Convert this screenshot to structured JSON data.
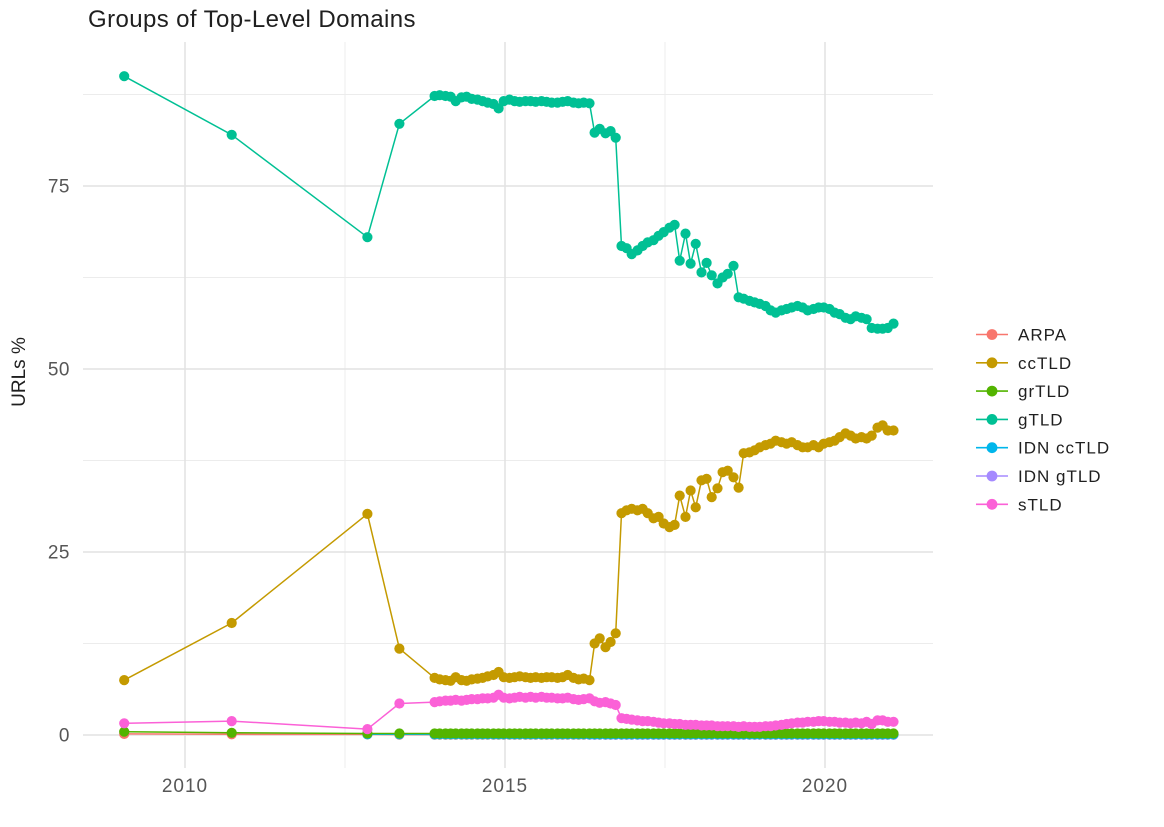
{
  "title": "Groups of Top-Level Domains",
  "y_axis": {
    "label": "URLs %",
    "tick_labels": [
      "0",
      "25",
      "50",
      "75"
    ]
  },
  "x_axis": {
    "tick_labels": [
      "2010",
      "2015",
      "2020"
    ]
  },
  "legend": {
    "items": [
      {
        "label": "ARPA",
        "color": "#F8766D"
      },
      {
        "label": "ccTLD",
        "color": "#C49A00"
      },
      {
        "label": "grTLD",
        "color": "#53B400"
      },
      {
        "label": "gTLD",
        "color": "#00C094"
      },
      {
        "label": "IDN ccTLD",
        "color": "#00B6EB"
      },
      {
        "label": "IDN gTLD",
        "color": "#A58AFF"
      },
      {
        "label": "sTLD",
        "color": "#FB61D7"
      }
    ]
  },
  "chart_data": {
    "type": "line",
    "title": "Groups of Top-Level Domains",
    "xlabel": "",
    "ylabel": "URLs %",
    "xlim": [
      2008.43,
      2021.73
    ],
    "ylim": [
      -4.5,
      94.6
    ],
    "grid": "major+minor",
    "legend_position": "right",
    "marker": "point",
    "axis": {
      "x_major": [
        2010,
        2015,
        2020
      ],
      "x_minor": [
        2012.5,
        2017.5
      ],
      "y_major": [
        0,
        25,
        50,
        75
      ],
      "y_minor": [
        12.5,
        37.5,
        62.5,
        87.5
      ]
    },
    "draw_order": [
      "ARPA",
      "IDN gTLD",
      "IDN ccTLD",
      "grTLD",
      "ccTLD",
      "gTLD",
      "sTLD"
    ],
    "x_common": [
      2009.05,
      2010.73,
      2012.85,
      2013.35,
      2013.9,
      2013.98,
      2014.07,
      2014.15,
      2014.23,
      2014.32,
      2014.4,
      2014.48,
      2014.57,
      2014.65,
      2014.73,
      2014.82,
      2014.9,
      2014.98,
      2015.07,
      2015.15,
      2015.23,
      2015.32,
      2015.4,
      2015.48,
      2015.57,
      2015.65,
      2015.73,
      2015.82,
      2015.9,
      2015.98,
      2016.07,
      2016.15,
      2016.23,
      2016.32,
      2016.4,
      2016.48,
      2016.57,
      2016.65,
      2016.73,
      2016.82,
      2016.9,
      2016.98,
      2017.07,
      2017.15,
      2017.23,
      2017.32,
      2017.4,
      2017.48,
      2017.57,
      2017.65,
      2017.73,
      2017.82,
      2017.9,
      2017.98,
      2018.07,
      2018.15,
      2018.23,
      2018.32,
      2018.4,
      2018.48,
      2018.57,
      2018.65,
      2018.73,
      2018.82,
      2018.9,
      2018.98,
      2019.07,
      2019.15,
      2019.23,
      2019.32,
      2019.4,
      2019.48,
      2019.57,
      2019.65,
      2019.73,
      2019.82,
      2019.9,
      2019.98,
      2020.07,
      2020.15,
      2020.23,
      2020.32,
      2020.4,
      2020.48,
      2020.57,
      2020.65,
      2020.73,
      2020.82,
      2020.9,
      2020.98,
      2021.07
    ],
    "series": [
      {
        "name": "ARPA",
        "color": "#F8766D",
        "x_start_index": 0,
        "y": [
          0.15,
          0.1,
          0.08,
          0.06,
          0.05,
          0.05,
          0.05,
          0.05,
          0.05,
          0.05,
          0.05,
          0.05,
          0.05,
          0.05,
          0.05,
          0.05,
          0.05,
          0.05,
          0.05,
          0.05,
          0.05,
          0.05,
          0.05,
          0.05,
          0.05,
          0.05,
          0.05,
          0.05,
          0.05,
          0.05,
          0.05,
          0.05,
          0.05,
          0.05,
          0.05,
          0.05,
          0.05,
          0.05,
          0.05,
          0.05,
          0.05,
          0.05,
          0.05,
          0.05,
          0.05,
          0.05,
          0.05,
          0.05,
          0.05,
          0.05,
          0.05,
          0.05,
          0.05,
          0.05,
          0.05,
          0.05,
          0.05,
          0.05,
          0.05,
          0.05,
          0.05,
          0.05,
          0.05,
          0.05,
          0.05,
          0.05,
          0.05,
          0.05,
          0.05,
          0.05,
          0.05,
          0.05,
          0.05,
          0.05,
          0.05,
          0.05,
          0.05,
          0.05,
          0.05,
          0.05,
          0.05,
          0.05,
          0.05,
          0.05,
          0.05,
          0.05,
          0.05,
          0.05,
          0.05,
          0.05,
          0.05
        ]
      },
      {
        "name": "ccTLD",
        "color": "#C49A00",
        "x_start_index": 0,
        "y": [
          7.5,
          15.3,
          30.2,
          11.8,
          7.8,
          7.6,
          7.5,
          7.4,
          7.9,
          7.5,
          7.4,
          7.6,
          7.7,
          7.8,
          8,
          8.2,
          8.6,
          7.9,
          7.8,
          7.9,
          8,
          7.9,
          7.8,
          7.9,
          7.8,
          7.9,
          7.9,
          7.8,
          7.9,
          8.2,
          7.8,
          7.6,
          7.7,
          7.5,
          12.5,
          13.2,
          12,
          12.7,
          13.9,
          30.3,
          30.7,
          30.9,
          30.7,
          30.9,
          30.3,
          29.6,
          29.8,
          28.9,
          28.4,
          28.7,
          32.7,
          29.8,
          33.4,
          31.1,
          34.8,
          35,
          32.5,
          33.7,
          35.9,
          36.1,
          35.2,
          33.8,
          38.5,
          38.6,
          38.9,
          39.3,
          39.6,
          39.8,
          40.2,
          40,
          39.8,
          40,
          39.6,
          39.3,
          39.3,
          39.6,
          39.3,
          39.8,
          40,
          40.2,
          40.7,
          41.2,
          40.9,
          40.5,
          40.7,
          40.5,
          40.9,
          42,
          42.3,
          41.6,
          41.6
        ]
      },
      {
        "name": "grTLD",
        "color": "#53B400",
        "x_start_index": 0,
        "y": [
          0.45,
          0.3,
          0.2,
          0.2,
          0.2,
          0.2,
          0.2,
          0.2,
          0.2,
          0.2,
          0.2,
          0.2,
          0.2,
          0.2,
          0.2,
          0.2,
          0.2,
          0.2,
          0.2,
          0.2,
          0.2,
          0.2,
          0.2,
          0.2,
          0.2,
          0.2,
          0.2,
          0.2,
          0.2,
          0.2,
          0.2,
          0.2,
          0.2,
          0.2,
          0.2,
          0.2,
          0.2,
          0.2,
          0.2,
          0.2,
          0.2,
          0.2,
          0.2,
          0.2,
          0.2,
          0.2,
          0.2,
          0.2,
          0.2,
          0.2,
          0.2,
          0.2,
          0.2,
          0.2,
          0.2,
          0.2,
          0.2,
          0.2,
          0.2,
          0.2,
          0.2,
          0.2,
          0.2,
          0.2,
          0.2,
          0.2,
          0.2,
          0.2,
          0.2,
          0.2,
          0.2,
          0.2,
          0.2,
          0.2,
          0.2,
          0.2,
          0.2,
          0.2,
          0.2,
          0.2,
          0.2,
          0.2,
          0.2,
          0.2,
          0.2,
          0.2,
          0.2,
          0.2,
          0.2,
          0.2,
          0.2
        ]
      },
      {
        "name": "gTLD",
        "color": "#00C094",
        "x_start_index": 0,
        "y": [
          90,
          82,
          68,
          83.5,
          87.3,
          87.4,
          87.3,
          87.2,
          86.6,
          87.1,
          87.2,
          86.9,
          86.8,
          86.6,
          86.4,
          86.2,
          85.6,
          86.6,
          86.8,
          86.6,
          86.5,
          86.6,
          86.6,
          86.5,
          86.6,
          86.5,
          86.4,
          86.4,
          86.5,
          86.6,
          86.4,
          86.3,
          86.4,
          86.3,
          82.3,
          82.8,
          82.2,
          82.5,
          81.6,
          66.8,
          66.5,
          65.7,
          66.2,
          66.8,
          67.3,
          67.6,
          68.2,
          68.7,
          69.3,
          69.7,
          64.8,
          68.5,
          64.4,
          67.1,
          63.2,
          64.5,
          62.8,
          61.7,
          62.5,
          63,
          64.1,
          59.8,
          59.6,
          59.3,
          59.1,
          58.9,
          58.6,
          58,
          57.7,
          58,
          58.2,
          58.4,
          58.6,
          58.4,
          58,
          58.2,
          58.4,
          58.4,
          58.2,
          57.7,
          57.5,
          57,
          56.8,
          57.2,
          57,
          56.8,
          55.6,
          55.5,
          55.5,
          55.6,
          56.2
        ]
      },
      {
        "name": "IDN ccTLD",
        "color": "#00B6EB",
        "x_start_index": 2,
        "y": [
          0.1,
          0.1,
          0.08,
          0.08,
          0.08,
          0.08,
          0.08,
          0.08,
          0.08,
          0.08,
          0.08,
          0.08,
          0.08,
          0.08,
          0.08,
          0.08,
          0.08,
          0.08,
          0.08,
          0.08,
          0.08,
          0.08,
          0.08,
          0.08,
          0.08,
          0.08,
          0.08,
          0.08,
          0.08,
          0.08,
          0.08,
          0.08,
          0.08,
          0.08,
          0.08,
          0.08,
          0.08,
          0.08,
          0.08,
          0.08,
          0.08,
          0.08,
          0.08,
          0.08,
          0.08,
          0.08,
          0.08,
          0.08,
          0.08,
          0.08,
          0.08,
          0.08,
          0.08,
          0.08,
          0.08,
          0.08,
          0.08,
          0.08,
          0.08,
          0.08,
          0.08,
          0.08,
          0.08,
          0.08,
          0.08,
          0.08,
          0.08,
          0.08,
          0.08,
          0.08,
          0.08,
          0.08,
          0.08,
          0.08,
          0.08,
          0.08,
          0.08,
          0.08,
          0.08,
          0.08,
          0.08,
          0.08,
          0.08,
          0.08,
          0.08,
          0.08,
          0.08,
          0.08,
          0.08
        ]
      },
      {
        "name": "IDN gTLD",
        "color": "#A58AFF",
        "x_start_index": 33,
        "y": [
          0.05,
          0.05,
          0.05,
          0.05,
          0.05,
          0.05,
          0.05,
          0.05,
          0.05,
          0.05,
          0.05,
          0.05,
          0.05,
          0.05,
          0.05,
          0.05,
          0.05,
          0.05,
          0.05,
          0.05,
          0.05,
          0.05,
          0.05,
          0.05,
          0.05,
          0.05,
          0.05,
          0.05,
          0.05,
          0.05,
          0.05,
          0.05,
          0.05,
          0.05,
          0.05,
          0.05,
          0.05,
          0.05,
          0.05,
          0.05,
          0.05,
          0.05,
          0.05,
          0.05,
          0.05,
          0.05,
          0.05,
          0.05,
          0.05,
          0.05,
          0.05,
          0.05,
          0.05,
          0.05,
          0.05,
          0.05,
          0.05,
          0.05
        ]
      },
      {
        "name": "sTLD",
        "color": "#FB61D7",
        "x_start_index": 0,
        "y": [
          1.6,
          1.9,
          0.8,
          4.3,
          4.5,
          4.6,
          4.7,
          4.7,
          4.8,
          4.7,
          4.8,
          4.9,
          4.9,
          5,
          5,
          5.1,
          5.5,
          5.1,
          5,
          5.1,
          5.2,
          5.1,
          5.2,
          5.1,
          5.2,
          5.1,
          5.1,
          5,
          5,
          5.1,
          4.9,
          4.8,
          4.9,
          5,
          4.6,
          4.4,
          4.5,
          4.3,
          4.1,
          2.3,
          2.2,
          2.1,
          2,
          1.9,
          1.9,
          1.8,
          1.7,
          1.6,
          1.6,
          1.5,
          1.5,
          1.4,
          1.4,
          1.4,
          1.3,
          1.3,
          1.3,
          1.2,
          1.2,
          1.2,
          1.2,
          1.1,
          1.2,
          1.1,
          1.1,
          1.1,
          1.2,
          1.2,
          1.3,
          1.4,
          1.5,
          1.6,
          1.7,
          1.7,
          1.8,
          1.8,
          1.9,
          1.9,
          1.8,
          1.8,
          1.7,
          1.7,
          1.6,
          1.7,
          1.6,
          1.8,
          1.5,
          2,
          2,
          1.8,
          1.8
        ]
      }
    ]
  },
  "style": {
    "grid_major_color": "#E2E2E2",
    "grid_minor_color": "#ECECEC",
    "tick_label_color": "#565656",
    "text_color": "#1F1F1F",
    "background": "#FFFFFF"
  }
}
